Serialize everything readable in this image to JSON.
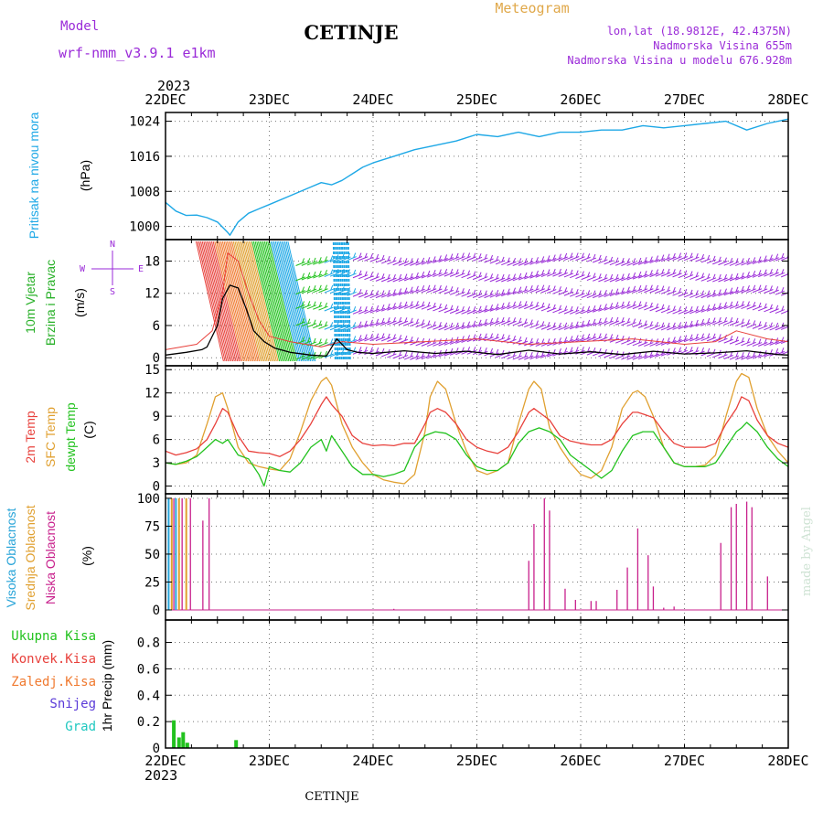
{
  "header": {
    "model_label": "Model",
    "model_version": "wrf-nmm_v3.9.1 e1km",
    "station": "CETINJE",
    "product": "Meteogram",
    "coords": "lon,lat (18.9812E, 42.4375N)",
    "elevation": "Nadmorska Visina 655m",
    "model_elevation": "Nadmorska Visina u modelu 676.928m"
  },
  "footer": {
    "station": "CETINJE",
    "credit": "made by Angel"
  },
  "time_axis": {
    "year": "2023",
    "ticks": [
      "22DEC",
      "23DEC",
      "24DEC",
      "25DEC",
      "26DEC",
      "27DEC",
      "28DEC"
    ]
  },
  "colors": {
    "pressure": "#1ea8e6",
    "temp2m": "#e8413c",
    "sfc_temp": "#e0a030",
    "dewpoint": "#22c21e",
    "wind_barbs": "#9a2ad8",
    "wind_label": "#28b028",
    "cloud_high": "#28a4d8",
    "cloud_mid": "#e0a030",
    "cloud_low": "#c8208c",
    "precip_total": "#22c21e",
    "precip_conv": "#e8413c",
    "precip_frozen": "#f07a30",
    "snow": "#5a3ad8",
    "hail": "#20c8c0",
    "header_purple": "#9a2ad8",
    "header_gold": "#e0a84a"
  },
  "chart_data": [
    {
      "type": "line",
      "panel": "pressure",
      "ylabel_lines": [
        "Pritisak na nivou mora",
        "(hPa)"
      ],
      "yticks": [
        1000,
        1008,
        1016,
        1024
      ],
      "ylim": [
        997,
        1026
      ],
      "x_unit": "days after 22DEC 00h",
      "series": [
        {
          "name": "Pritisak na nivou mora",
          "x": [
            0,
            0.1,
            0.2,
            0.3,
            0.4,
            0.5,
            0.6,
            0.62,
            0.7,
            0.8,
            0.9,
            1.0,
            1.2,
            1.4,
            1.5,
            1.6,
            1.7,
            1.8,
            1.9,
            2.0,
            2.2,
            2.4,
            2.6,
            2.8,
            3.0,
            3.2,
            3.4,
            3.6,
            3.8,
            4.0,
            4.2,
            4.4,
            4.6,
            4.8,
            5.0,
            5.2,
            5.4,
            5.6,
            5.8,
            6.0
          ],
          "y": [
            1005.5,
            1003.5,
            1002.5,
            1002.6,
            1002,
            1001,
            998.6,
            998,
            1001,
            1003,
            1004,
            1005,
            1007,
            1009,
            1010,
            1009.5,
            1010.5,
            1012,
            1013.5,
            1014.5,
            1016,
            1017.5,
            1018.5,
            1019.5,
            1021,
            1020.5,
            1021.5,
            1020.5,
            1021.5,
            1021.5,
            1022,
            1022,
            1023,
            1022.5,
            1023,
            1023.5,
            1024,
            1022,
            1023.5,
            1024.5
          ]
        }
      ]
    },
    {
      "type": "line",
      "panel": "wind",
      "ylabel_lines": [
        "10m Vjetar",
        "Brzina i Pravac",
        "(m/s)"
      ],
      "compass": [
        "N",
        "E",
        "S",
        "W"
      ],
      "yticks": [
        0,
        6,
        12,
        18
      ],
      "ylim": [
        -1.5,
        22
      ],
      "series": [
        {
          "name": "speed",
          "x": [
            0,
            0.2,
            0.35,
            0.4,
            0.5,
            0.55,
            0.62,
            0.7,
            0.78,
            0.85,
            0.95,
            1.05,
            1.2,
            1.4,
            1.55,
            1.65,
            1.75,
            1.85,
            2.0,
            2.3,
            2.6,
            2.9,
            3.2,
            3.5,
            3.8,
            4.1,
            4.4,
            4.7,
            5.0,
            5.3,
            5.6,
            5.9,
            6.0
          ],
          "y": [
            0.5,
            1,
            1.5,
            2,
            6,
            11,
            13.5,
            13,
            9,
            5,
            3,
            1.8,
            1,
            0.5,
            0.3,
            3.5,
            1.5,
            1,
            0.8,
            1.3,
            0.8,
            1.2,
            0.6,
            1.4,
            0.7,
            1.1,
            0.6,
            1.2,
            0.7,
            0.9,
            1.3,
            0.6,
            0.5
          ]
        },
        {
          "name": "gust",
          "x": [
            0,
            0.3,
            0.45,
            0.55,
            0.6,
            0.7,
            0.8,
            0.9,
            1.0,
            1.2,
            1.5,
            1.7,
            2.0,
            2.5,
            3.0,
            3.5,
            4.0,
            4.5,
            5.0,
            5.3,
            5.5,
            5.8,
            6.0
          ],
          "y": [
            1.5,
            2.5,
            5,
            12,
            19.5,
            18,
            12,
            7,
            4,
            3,
            2,
            3,
            2.5,
            3,
            3.5,
            2.5,
            3,
            3.5,
            2.5,
            3,
            5,
            3.5,
            3
          ]
        }
      ]
    },
    {
      "type": "line",
      "panel": "temperature",
      "ylabel_lines": [
        "2m Temp",
        "SFC Temp",
        "dewpt Temp",
        "(C)"
      ],
      "yticks": [
        0,
        3,
        6,
        9,
        12,
        15
      ],
      "ylim": [
        -1,
        15.5
      ],
      "series": [
        {
          "name": "2m Temp",
          "x": [
            0,
            0.1,
            0.2,
            0.3,
            0.4,
            0.48,
            0.55,
            0.6,
            0.65,
            0.7,
            0.8,
            0.9,
            1.0,
            1.1,
            1.2,
            1.3,
            1.4,
            1.5,
            1.55,
            1.6,
            1.7,
            1.8,
            1.9,
            2.0,
            2.1,
            2.2,
            2.3,
            2.4,
            2.5,
            2.55,
            2.62,
            2.7,
            2.8,
            2.9,
            3.0,
            3.1,
            3.2,
            3.3,
            3.4,
            3.5,
            3.55,
            3.62,
            3.7,
            3.8,
            3.9,
            4.0,
            4.1,
            4.2,
            4.3,
            4.4,
            4.5,
            4.55,
            4.62,
            4.7,
            4.8,
            4.9,
            5.0,
            5.1,
            5.2,
            5.3,
            5.4,
            5.5,
            5.55,
            5.62,
            5.7,
            5.8,
            5.9,
            6.0
          ],
          "y": [
            4.5,
            4,
            4.3,
            4.8,
            6,
            8,
            10,
            9.5,
            8,
            6.5,
            4.5,
            4.3,
            4.2,
            3.8,
            4.5,
            6,
            8,
            10.5,
            11.5,
            10.5,
            9,
            6.5,
            5.5,
            5.2,
            5.3,
            5.2,
            5.5,
            5.5,
            8,
            9.5,
            10,
            9.5,
            8,
            6,
            5,
            4.5,
            4.2,
            5,
            7,
            9.5,
            10,
            9.3,
            8.5,
            6.5,
            5.8,
            5.5,
            5.3,
            5.3,
            6,
            8,
            9.5,
            9.5,
            9.2,
            8.8,
            7,
            5.5,
            5,
            5,
            5,
            5.5,
            8,
            10,
            11.5,
            11,
            8.5,
            6.5,
            5.5,
            5
          ]
        },
        {
          "name": "SFC Temp",
          "x": [
            0,
            0.1,
            0.2,
            0.3,
            0.4,
            0.48,
            0.55,
            0.6,
            0.65,
            0.7,
            0.8,
            0.9,
            1.0,
            1.1,
            1.2,
            1.3,
            1.4,
            1.5,
            1.55,
            1.6,
            1.7,
            1.8,
            1.9,
            2.0,
            2.1,
            2.2,
            2.3,
            2.4,
            2.5,
            2.55,
            2.62,
            2.7,
            2.8,
            2.9,
            3.0,
            3.1,
            3.2,
            3.3,
            3.4,
            3.5,
            3.55,
            3.62,
            3.7,
            3.8,
            3.9,
            4.0,
            4.1,
            4.2,
            4.3,
            4.4,
            4.5,
            4.55,
            4.62,
            4.7,
            4.8,
            4.9,
            5.0,
            5.1,
            5.2,
            5.3,
            5.4,
            5.5,
            5.55,
            5.62,
            5.7,
            5.8,
            5.9,
            6.0
          ],
          "y": [
            3,
            2.8,
            3,
            4,
            8,
            11.5,
            12,
            10,
            7.5,
            5,
            3,
            2.5,
            2.2,
            2,
            3.5,
            7,
            11,
            13.5,
            14,
            13,
            8,
            5,
            3,
            1.5,
            0.8,
            0.5,
            0.3,
            1.5,
            7,
            11.5,
            13.5,
            12.5,
            8,
            4.5,
            2,
            1.5,
            2,
            3,
            8,
            12.5,
            13.5,
            12.5,
            7.5,
            5,
            3,
            1.5,
            1,
            2,
            5,
            10,
            12,
            12.3,
            11.5,
            9,
            5,
            3,
            2.5,
            2.5,
            2.7,
            4,
            9,
            13.5,
            14.5,
            14,
            10,
            6.5,
            4.5,
            3
          ]
        },
        {
          "name": "dewpt Temp",
          "x": [
            0,
            0.1,
            0.2,
            0.3,
            0.4,
            0.48,
            0.55,
            0.6,
            0.65,
            0.7,
            0.8,
            0.9,
            0.95,
            1.0,
            1.1,
            1.2,
            1.3,
            1.4,
            1.5,
            1.55,
            1.6,
            1.7,
            1.8,
            1.9,
            2.0,
            2.1,
            2.2,
            2.3,
            2.4,
            2.5,
            2.6,
            2.7,
            2.8,
            2.9,
            3.0,
            3.1,
            3.2,
            3.3,
            3.4,
            3.5,
            3.6,
            3.7,
            3.8,
            3.9,
            4.0,
            4.1,
            4.2,
            4.3,
            4.4,
            4.5,
            4.6,
            4.7,
            4.8,
            4.9,
            5.0,
            5.1,
            5.2,
            5.3,
            5.4,
            5.5,
            5.55,
            5.6,
            5.7,
            5.8,
            5.9,
            6.0
          ],
          "y": [
            3,
            2.8,
            3.2,
            3.8,
            5,
            6,
            5.5,
            6,
            5,
            4,
            3.5,
            1.5,
            0,
            2.5,
            2,
            1.8,
            3,
            5,
            6,
            4.5,
            6.5,
            4.5,
            2.5,
            1.5,
            1.5,
            1.2,
            1.5,
            2,
            5,
            6.5,
            7,
            6.8,
            6,
            4,
            2.5,
            2,
            2,
            3,
            5.5,
            7,
            7.5,
            7,
            6,
            4,
            3,
            2,
            1,
            2,
            4.5,
            6.5,
            7,
            7,
            5,
            3,
            2.5,
            2.5,
            2.5,
            3,
            5,
            7,
            7.5,
            8.2,
            7,
            5,
            3.5,
            2.5
          ]
        }
      ]
    },
    {
      "type": "bar",
      "panel": "clouds",
      "ylabel_lines": [
        "Visoka Oblacnost",
        "Srednja Oblacnost",
        "Niska Oblacnost",
        "(%)"
      ],
      "yticks": [
        0,
        25,
        50,
        75,
        100
      ],
      "ylim": [
        0,
        104
      ],
      "series": [
        {
          "name": "Visoka Oblacnost",
          "x": [
            0.03,
            0.1
          ],
          "values": [
            100,
            100
          ]
        },
        {
          "name": "Srednja Oblacnost",
          "x": [
            0.06,
            0.13,
            0.2
          ],
          "values": [
            100,
            100,
            100
          ]
        },
        {
          "name": "Niska Oblacnost",
          "x": [
            0.08,
            0.16,
            0.24,
            0.36,
            0.42,
            2.2,
            3.5,
            3.55,
            3.65,
            3.7,
            3.85,
            3.95,
            4.1,
            4.15,
            4.35,
            4.45,
            4.55,
            4.65,
            4.7,
            4.8,
            4.9,
            5.35,
            5.45,
            5.5,
            5.6,
            5.65,
            5.8,
            6.45,
            6.55
          ],
          "values": [
            100,
            100,
            100,
            80,
            100,
            1,
            44,
            77,
            100,
            89,
            19,
            9,
            8,
            8,
            18,
            38,
            73,
            49,
            21,
            2,
            3,
            60,
            92,
            95,
            97,
            92,
            30,
            10,
            2
          ]
        }
      ]
    },
    {
      "type": "bar",
      "panel": "precipitation",
      "ylabel_lines": [
        "Ukupna Kisa",
        "Konvek.Kisa",
        "Zaledj.Kisa",
        "Snijeg",
        "Grad"
      ],
      "ylabel": "1hr Precip (mm)",
      "yticks": [
        0,
        0.2,
        0.4,
        0.6,
        0.8
      ],
      "ylim": [
        0,
        0.97
      ],
      "series": [
        {
          "name": "Ukupna Kisa",
          "x": [
            0.08,
            0.13,
            0.17,
            0.21,
            0.68
          ],
          "values": [
            0.21,
            0.08,
            0.12,
            0.04,
            0.06
          ]
        }
      ]
    }
  ]
}
